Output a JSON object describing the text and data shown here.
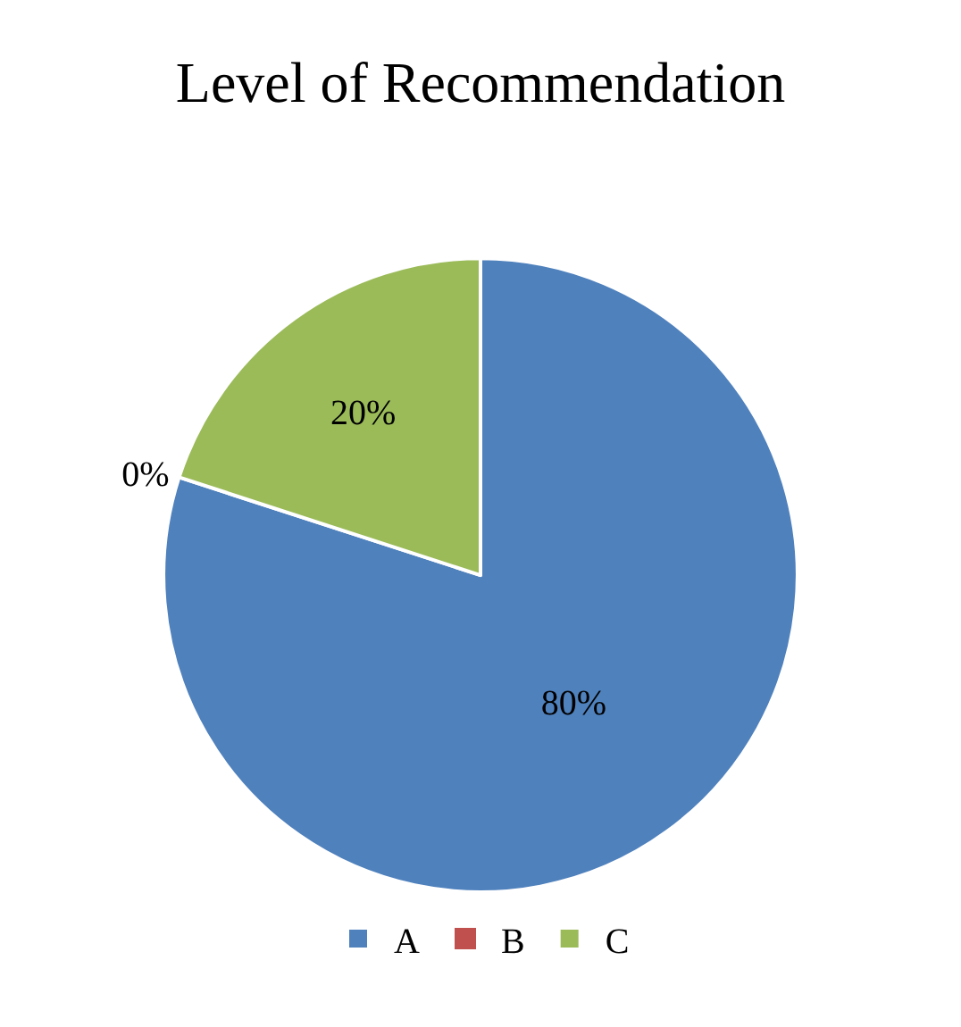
{
  "chart_data": {
    "type": "pie",
    "title": "Level of Recommendation",
    "categories": [
      "A",
      "B",
      "C"
    ],
    "values": [
      80,
      0,
      20
    ],
    "colors": [
      "#4f81bd",
      "#c0504d",
      "#9bbb59"
    ],
    "value_labels": [
      "80%",
      "0%",
      "20%"
    ],
    "legend": "bottom"
  }
}
